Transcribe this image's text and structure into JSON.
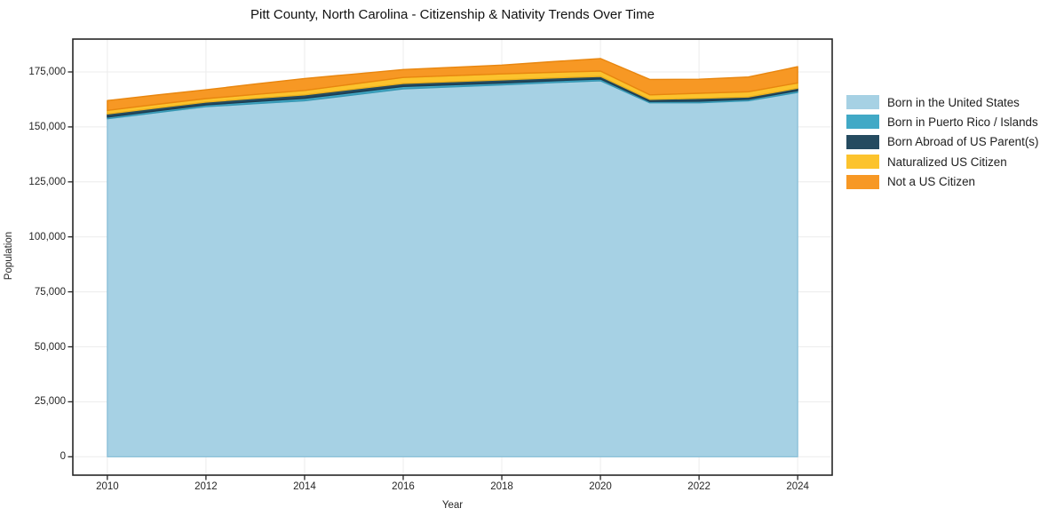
{
  "chart_data": {
    "type": "area",
    "stacked": true,
    "title": "Pitt County, North Carolina - Citizenship & Nativity Trends Over Time",
    "xlabel": "Year",
    "ylabel": "Population",
    "grid": true,
    "legend_position": "right-outside",
    "x": [
      2010,
      2011,
      2012,
      2013,
      2014,
      2015,
      2016,
      2017,
      2018,
      2019,
      2020,
      2021,
      2022,
      2023,
      2024
    ],
    "xticks": [
      2010,
      2012,
      2014,
      2016,
      2018,
      2020,
      2022,
      2024
    ],
    "xtick_labels": [
      "2010",
      "2012",
      "2014",
      "2016",
      "2018",
      "2020",
      "2022",
      "2024"
    ],
    "yticks": [
      175000,
      150000,
      125000,
      100000,
      75000,
      50000,
      25000,
      0
    ],
    "ytick_labels": [
      "175,000",
      "150,000",
      "125,000",
      "100,000",
      "75,000",
      "50,000",
      "25,000",
      "0"
    ],
    "xlim": [
      2009.3,
      2024.7
    ],
    "ylim": [
      0,
      190000
    ],
    "series": [
      {
        "name": "Born in the United States",
        "color": "#a6d1e4",
        "edge": "#8fc2d9",
        "values": [
          153700,
          156500,
          159200,
          160600,
          161900,
          164600,
          167300,
          168200,
          169100,
          170100,
          171000,
          161000,
          161000,
          161900,
          165700
        ]
      },
      {
        "name": "Born in Puerto Rico / Islands",
        "color": "#41a9c6",
        "edge": "#3797b3",
        "values": [
          800,
          800,
          800,
          950,
          1100,
          1100,
          1100,
          1000,
          900,
          850,
          800,
          600,
          700,
          700,
          800
        ]
      },
      {
        "name": "Born Abroad of US Parent(s)",
        "color": "#254b60",
        "edge": "#1c3c50",
        "values": [
          1400,
          1350,
          1300,
          1450,
          1600,
          1500,
          1400,
          1400,
          1400,
          1300,
          1200,
          900,
          1300,
          1000,
          1100
        ]
      },
      {
        "name": "Naturalized US Citizen",
        "color": "#fcc32d",
        "edge": "#edb11d",
        "values": [
          1600,
          1600,
          1600,
          1800,
          2000,
          2350,
          2700,
          2700,
          2700,
          2550,
          2400,
          2100,
          2300,
          2400,
          2400
        ]
      },
      {
        "name": "Not a US Citizen",
        "color": "#f79824",
        "edge": "#e8860f",
        "values": [
          4500,
          4250,
          4000,
          4700,
          5400,
          4500,
          3600,
          3800,
          4000,
          4850,
          5700,
          7000,
          6400,
          6700,
          7400
        ]
      }
    ]
  }
}
